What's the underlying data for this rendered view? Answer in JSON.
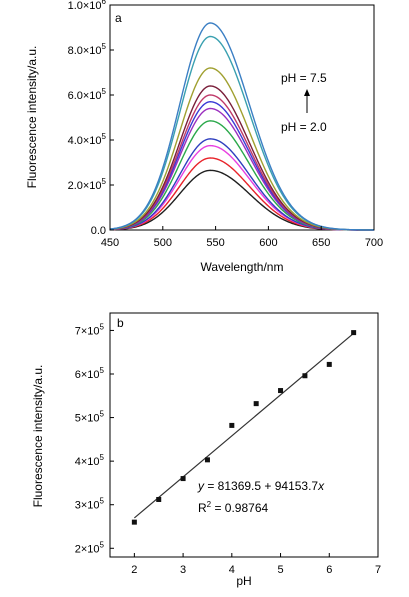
{
  "chart_data": [
    {
      "type": "line",
      "panel_label": "a",
      "xlabel": "Wavelength/nm",
      "ylabel": "Fluorescence intensity/a.u.",
      "xlim": [
        450,
        700
      ],
      "ylim": [
        0,
        1000000
      ],
      "x_ticks": [
        450,
        500,
        550,
        600,
        650,
        700
      ],
      "x_tick_labels": [
        "450",
        "500",
        "550",
        "600",
        "650",
        "700"
      ],
      "y_ticks": [
        0,
        200000,
        400000,
        600000,
        800000,
        1000000
      ],
      "y_tick_labels": [
        {
          "mantissa": "0.0",
          "exp": ""
        },
        {
          "mantissa": "2.0",
          "exp": "5"
        },
        {
          "mantissa": "4.0",
          "exp": "5"
        },
        {
          "mantissa": "6.0",
          "exp": "5"
        },
        {
          "mantissa": "8.0",
          "exp": "5"
        },
        {
          "mantissa": "1.0",
          "exp": "6"
        }
      ],
      "grid": false,
      "peak_wavelength": 545,
      "series": [
        {
          "color": "#1f1f1f",
          "peak": 265000
        },
        {
          "color": "#e8232a",
          "peak": 320000
        },
        {
          "color": "#e83fe0",
          "peak": 375000
        },
        {
          "color": "#2f3fbf",
          "peak": 405000
        },
        {
          "color": "#2aa84a",
          "peak": 485000
        },
        {
          "color": "#9b2fbf",
          "peak": 540000
        },
        {
          "color": "#3a3ad6",
          "peak": 570000
        },
        {
          "color": "#c03a6a",
          "peak": 600000
        },
        {
          "color": "#7a1f3a",
          "peak": 640000
        },
        {
          "color": "#a0a030",
          "peak": 720000
        },
        {
          "color": "#3aa0b0",
          "peak": 860000
        },
        {
          "color": "#3b7fc4",
          "peak": 920000
        }
      ],
      "annotations": {
        "top": "pH = 7.5",
        "bottom": "pH = 2.0"
      }
    },
    {
      "type": "scatter",
      "panel_label": "b",
      "xlabel": "pH",
      "ylabel": "Fluorescence intensity/a.u.",
      "xlim": [
        1.5,
        7
      ],
      "ylim": [
        180000,
        740000
      ],
      "x_ticks": [
        2,
        3,
        4,
        5,
        6,
        7
      ],
      "x_tick_labels": [
        "2",
        "3",
        "4",
        "5",
        "6",
        "7"
      ],
      "y_ticks": [
        200000,
        300000,
        400000,
        500000,
        600000,
        700000
      ],
      "y_tick_labels": [
        {
          "mantissa": "2×10",
          "exp": "5"
        },
        {
          "mantissa": "3×10",
          "exp": "5"
        },
        {
          "mantissa": "4×10",
          "exp": "5"
        },
        {
          "mantissa": "5×10",
          "exp": "5"
        },
        {
          "mantissa": "6×10",
          "exp": "5"
        },
        {
          "mantissa": "7×10",
          "exp": "5"
        }
      ],
      "grid": false,
      "points": [
        {
          "x": 2.0,
          "y": 260000
        },
        {
          "x": 2.5,
          "y": 312000
        },
        {
          "x": 3.0,
          "y": 360000
        },
        {
          "x": 3.5,
          "y": 403000
        },
        {
          "x": 4.0,
          "y": 482000
        },
        {
          "x": 4.5,
          "y": 532000
        },
        {
          "x": 5.0,
          "y": 562000
        },
        {
          "x": 5.5,
          "y": 596000
        },
        {
          "x": 6.0,
          "y": 622000
        },
        {
          "x": 6.5,
          "y": 695000
        }
      ],
      "fit": {
        "intercept": 81369.5,
        "slope": 94153.7,
        "x_range": [
          2,
          6.5
        ]
      },
      "equation": {
        "y": "y",
        "rest": " = 81369.5 + 94153.7",
        "x": "x"
      },
      "r2": {
        "r": "R",
        "sup": "2",
        "rest": " = 0.98764"
      }
    }
  ]
}
